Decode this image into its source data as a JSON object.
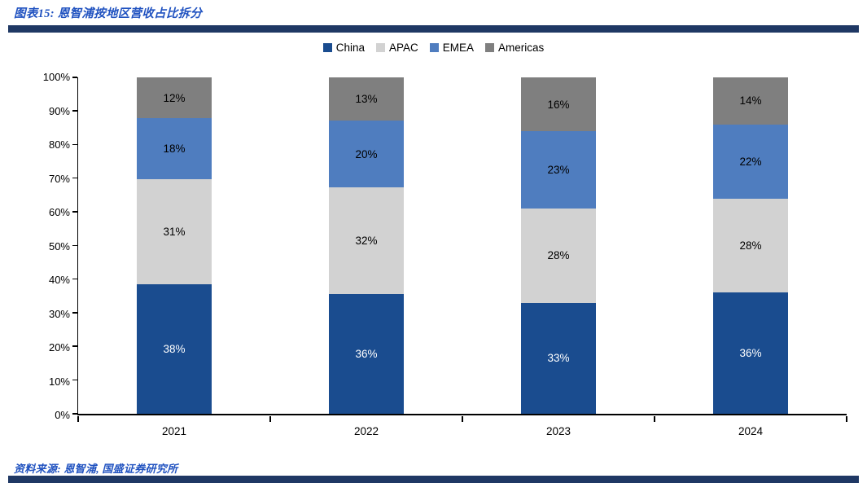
{
  "header": {
    "title": "图表15: 恩智浦按地区营收占比拆分"
  },
  "footer": {
    "source": "资料来源: 恩智浦, 国盛证券研究所"
  },
  "colors": {
    "title_text": "#2052C0",
    "divider": "#1F3864",
    "axis": "#000000"
  },
  "chart_data": {
    "type": "bar",
    "stacked": true,
    "title": "图表15: 恩智浦按地区营收占比拆分",
    "categories": [
      "2021",
      "2022",
      "2023",
      "2024"
    ],
    "series": [
      {
        "name": "China",
        "color": "#1A4C8F",
        "label_color": "#FFFFFF",
        "values": [
          38,
          36,
          33,
          36
        ]
      },
      {
        "name": "APAC",
        "color": "#D2D2D2",
        "label_color": "#000000",
        "values": [
          31,
          32,
          28,
          28
        ]
      },
      {
        "name": "EMEA",
        "color": "#4F7DBF",
        "label_color": "#000000",
        "values": [
          18,
          20,
          23,
          22
        ]
      },
      {
        "name": "Americas",
        "color": "#7F7F7F",
        "label_color": "#000000",
        "values": [
          12,
          13,
          16,
          14
        ]
      }
    ],
    "value_suffix": "%",
    "xlabel": "",
    "ylabel": "",
    "ylim": [
      0,
      100
    ],
    "ytick_labels": [
      "0%",
      "10%",
      "20%",
      "30%",
      "40%",
      "50%",
      "60%",
      "70%",
      "80%",
      "90%",
      "100%"
    ],
    "grid": false,
    "legend_position": "top"
  }
}
